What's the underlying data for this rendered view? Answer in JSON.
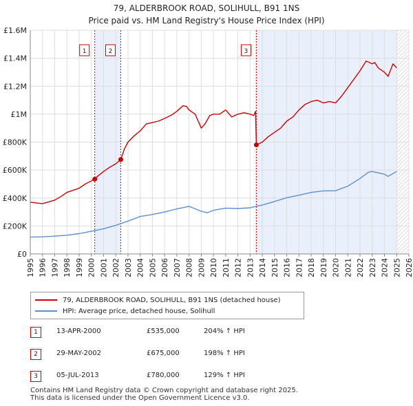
{
  "title": {
    "line1": "79, ALDERBROOK ROAD, SOLIHULL, B91 1NS",
    "line2": "Price paid vs. HM Land Registry's House Price Index (HPI)"
  },
  "chart_data": {
    "type": "line",
    "title": "79, ALDERBROOK ROAD, SOLIHULL, B91 1NS — Price paid vs. HM Land Registry's House Price Index (HPI)",
    "xlim": [
      1995,
      2026
    ],
    "ylim": [
      0,
      1600000
    ],
    "x_ticks": [
      1995,
      1996,
      1997,
      1998,
      1999,
      2000,
      2001,
      2002,
      2003,
      2004,
      2005,
      2006,
      2007,
      2008,
      2009,
      2010,
      2011,
      2012,
      2013,
      2014,
      2015,
      2016,
      2017,
      2018,
      2019,
      2020,
      2021,
      2022,
      2023,
      2024,
      2025,
      2026
    ],
    "y_ticks": [
      {
        "value": 0,
        "label": "£0"
      },
      {
        "value": 200000,
        "label": "£200K"
      },
      {
        "value": 400000,
        "label": "£400K"
      },
      {
        "value": 600000,
        "label": "£600K"
      },
      {
        "value": 800000,
        "label": "£800K"
      },
      {
        "value": 1000000,
        "label": "£1M"
      },
      {
        "value": 1200000,
        "label": "£1.2M"
      },
      {
        "value": 1400000,
        "label": "£1.4M"
      },
      {
        "value": 1600000,
        "label": "£1.6M"
      }
    ],
    "grid": true,
    "shaded_ranges": [
      [
        2000.28,
        2002.41
      ],
      [
        2013.51,
        2025.0
      ]
    ],
    "future_hatch_from": 2025.0,
    "series": [
      {
        "name": "79, ALDERBROOK ROAD, SOLIHULL, B91 1NS (detached house)",
        "color": "#cc0000",
        "x": [
          1995.0,
          1995.5,
          1996.0,
          1996.5,
          1997.0,
          1997.5,
          1998.0,
          1998.5,
          1999.0,
          1999.5,
          2000.28,
          2000.5,
          2001.0,
          2001.5,
          2002.0,
          2002.41,
          2002.7,
          2003.0,
          2003.5,
          2004.0,
          2004.5,
          2005.0,
          2005.5,
          2006.0,
          2006.5,
          2007.0,
          2007.5,
          2007.8,
          2008.0,
          2008.5,
          2009.0,
          2009.3,
          2009.7,
          2010.0,
          2010.5,
          2011.0,
          2011.5,
          2012.0,
          2012.5,
          2013.0,
          2013.3,
          2013.45,
          2013.51,
          2014.0,
          2014.5,
          2015.0,
          2015.5,
          2016.0,
          2016.5,
          2017.0,
          2017.5,
          2018.0,
          2018.5,
          2019.0,
          2019.5,
          2020.0,
          2020.5,
          2021.0,
          2021.5,
          2022.0,
          2022.5,
          2023.0,
          2023.2,
          2023.5,
          2024.0,
          2024.3,
          2024.7,
          2025.0
        ],
        "values": [
          370000,
          365000,
          360000,
          372000,
          385000,
          410000,
          440000,
          455000,
          470000,
          500000,
          535000,
          555000,
          590000,
          620000,
          645000,
          675000,
          750000,
          800000,
          845000,
          880000,
          930000,
          940000,
          950000,
          970000,
          990000,
          1020000,
          1060000,
          1055000,
          1030000,
          1000000,
          900000,
          930000,
          990000,
          1000000,
          1000000,
          1030000,
          980000,
          1000000,
          1010000,
          1000000,
          990000,
          1020000,
          780000,
          800000,
          840000,
          870000,
          900000,
          950000,
          980000,
          1030000,
          1070000,
          1090000,
          1100000,
          1080000,
          1090000,
          1080000,
          1130000,
          1190000,
          1250000,
          1310000,
          1380000,
          1360000,
          1370000,
          1330000,
          1300000,
          1270000,
          1360000,
          1330000
        ]
      },
      {
        "name": "HPI: Average price, detached house, Solihull",
        "color": "#5b8fd4",
        "x": [
          1995.0,
          1996.0,
          1997.0,
          1998.0,
          1999.0,
          2000.0,
          2001.0,
          2002.0,
          2003.0,
          2004.0,
          2005.0,
          2006.0,
          2007.0,
          2008.0,
          2009.0,
          2009.5,
          2010.0,
          2011.0,
          2012.0,
          2013.0,
          2013.51,
          2014.0,
          2015.0,
          2016.0,
          2017.0,
          2018.0,
          2019.0,
          2020.0,
          2021.0,
          2022.0,
          2022.7,
          2023.0,
          2023.5,
          2024.0,
          2024.3,
          2025.0
        ],
        "values": [
          120000,
          122000,
          127000,
          134000,
          145000,
          162000,
          180000,
          205000,
          235000,
          268000,
          282000,
          300000,
          322000,
          340000,
          305000,
          295000,
          312000,
          328000,
          325000,
          330000,
          341000,
          350000,
          375000,
          402000,
          420000,
          440000,
          451000,
          452000,
          485000,
          540000,
          585000,
          590000,
          580000,
          570000,
          555000,
          590000
        ]
      }
    ],
    "sale_points": [
      {
        "label": "1",
        "x": 2000.28,
        "value": 535000
      },
      {
        "label": "2",
        "x": 2002.41,
        "value": 675000
      },
      {
        "label": "3",
        "x": 2013.51,
        "value": 780000
      }
    ]
  },
  "legend": {
    "property": "79, ALDERBROOK ROAD, SOLIHULL, B91 1NS (detached house)",
    "hpi": "HPI: Average price, detached house, Solihull"
  },
  "transactions": [
    {
      "num": "1",
      "date": "13-APR-2000",
      "price": "£535,000",
      "hpi": "204% ↑ HPI"
    },
    {
      "num": "2",
      "date": "29-MAY-2002",
      "price": "£675,000",
      "hpi": "198% ↑ HPI"
    },
    {
      "num": "3",
      "date": "05-JUL-2013",
      "price": "£780,000",
      "hpi": "129% ↑ HPI"
    }
  ],
  "footer": {
    "line1": "Contains HM Land Registry data © Crown copyright and database right 2025.",
    "line2": "This data is licensed under the Open Government Licence v3.0."
  },
  "colors": {
    "property": "#cc0000",
    "hpi": "#5b8fd4",
    "shade": "#eaf0fb",
    "grid": "#dddddd"
  }
}
